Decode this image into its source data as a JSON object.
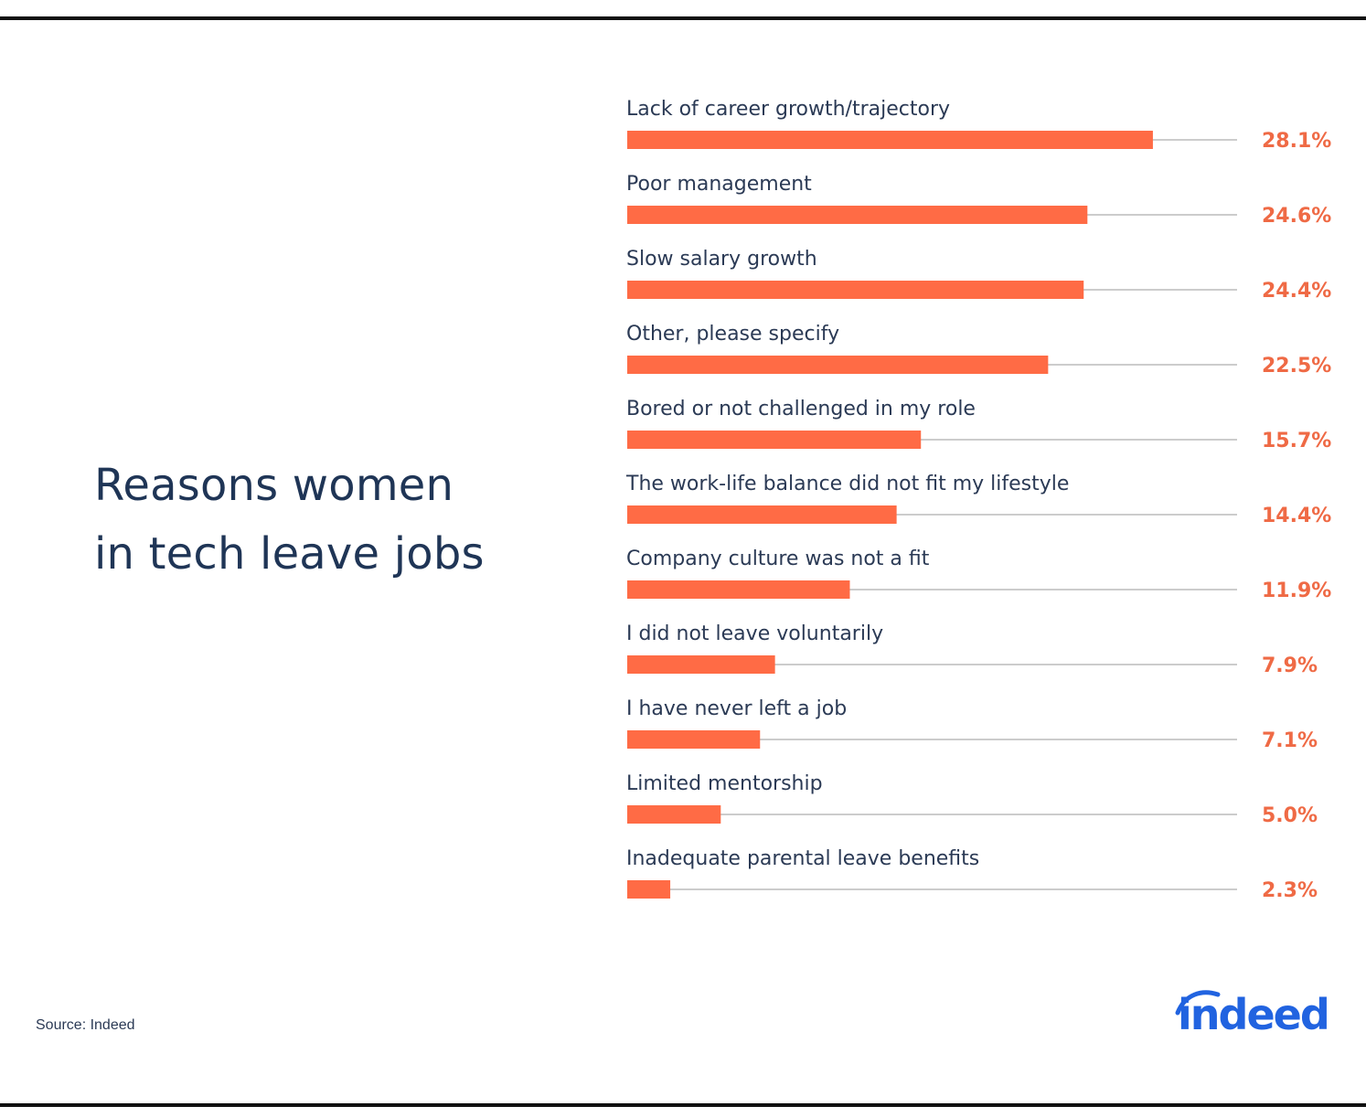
{
  "title_lines": [
    "Reasons women",
    "in tech leave jobs"
  ],
  "source": "Source: Indeed",
  "logo_text": "indeed",
  "colors": {
    "bar": "#ff6b45",
    "value_label": "#ef6a45",
    "title": "#1f3556",
    "logo": "#2163e0",
    "track_line": "#9a9a9a"
  },
  "chart_data": {
    "type": "bar",
    "orientation": "horizontal",
    "title": "Reasons women in tech leave jobs",
    "categories": [
      "Lack of career growth/trajectory",
      "Poor management",
      "Slow salary growth",
      "Other, please specify",
      "Bored or not challenged in my role",
      "The work-life balance did not fit my lifestyle",
      "Company culture was not a fit",
      "I did not leave voluntarily",
      "I have never left a job",
      "Limited mentorship",
      "Inadequate parental leave benefits"
    ],
    "values": [
      28.1,
      24.6,
      24.4,
      22.5,
      15.7,
      14.4,
      11.9,
      7.9,
      7.1,
      5.0,
      2.3
    ],
    "value_labels": [
      "28.1%",
      "24.6%",
      "24.4%",
      "22.5%",
      "15.7%",
      "14.4%",
      "11.9%",
      "7.9%",
      "7.1%",
      "5.0%",
      "2.3%"
    ],
    "unit": "%",
    "xlim": [
      0,
      32.6
    ],
    "grid": false,
    "legend": "none"
  }
}
